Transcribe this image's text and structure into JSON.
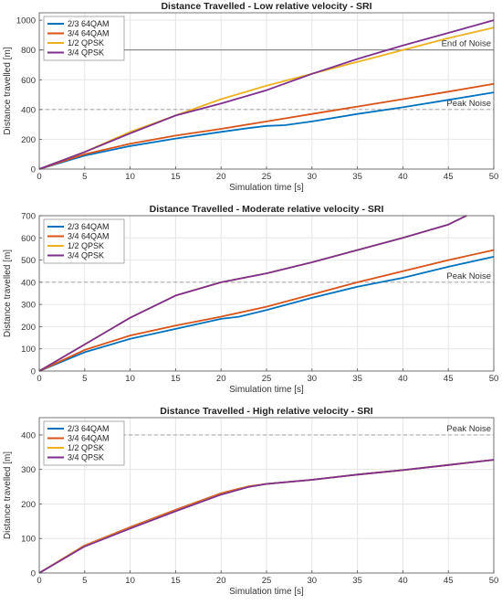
{
  "chart_data": [
    {
      "type": "line",
      "title": "Distance Travelled - Low relative velocity - SRI",
      "xlabel": "Simulation time [s]",
      "ylabel": "Distance travelled [m]",
      "xlim": [
        0,
        50
      ],
      "ylim": [
        0,
        1050
      ],
      "xticks": [
        0,
        5,
        10,
        15,
        20,
        25,
        30,
        35,
        40,
        45,
        50
      ],
      "yticks": [
        0,
        200,
        400,
        600,
        800,
        1000
      ],
      "grid": true,
      "legend": "top-left",
      "hlines": [
        {
          "y": 800,
          "label": "End of Noise",
          "style": "solid",
          "color": "#666666"
        },
        {
          "y": 400,
          "label": "Peak Noise",
          "style": "dashed",
          "color": "#999999"
        }
      ],
      "series": [
        {
          "name": "2/3 64QAM",
          "color": "#0072BD",
          "x": [
            0,
            5,
            10,
            15,
            20,
            23,
            25,
            27,
            30,
            35,
            40,
            45,
            50
          ],
          "y": [
            0,
            90,
            155,
            205,
            250,
            275,
            290,
            295,
            320,
            370,
            415,
            465,
            515
          ]
        },
        {
          "name": "3/4 64QAM",
          "color": "#D95319",
          "x": [
            0,
            5,
            10,
            15,
            20,
            25,
            30,
            35,
            40,
            45,
            50
          ],
          "y": [
            0,
            100,
            170,
            225,
            270,
            320,
            370,
            420,
            470,
            520,
            572
          ]
        },
        {
          "name": "1/2 QPSK",
          "color": "#EDB120",
          "x": [
            0,
            5,
            10,
            15,
            20,
            25,
            30,
            35,
            40,
            45,
            50
          ],
          "y": [
            0,
            115,
            250,
            360,
            470,
            560,
            640,
            720,
            800,
            880,
            950
          ]
        },
        {
          "name": "3/4 QPSK",
          "color": "#7E2F8E",
          "x": [
            0,
            5,
            10,
            15,
            20,
            25,
            30,
            35,
            40,
            45,
            50
          ],
          "y": [
            0,
            115,
            240,
            360,
            440,
            530,
            640,
            740,
            830,
            915,
            1000
          ]
        }
      ]
    },
    {
      "type": "line",
      "title": "Distance Travelled - Moderate relative velocity - SRI",
      "xlabel": "Simulation time [s]",
      "ylabel": "Distance travelled [m]",
      "xlim": [
        0,
        50
      ],
      "ylim": [
        0,
        700
      ],
      "xticks": [
        0,
        5,
        10,
        15,
        20,
        25,
        30,
        35,
        40,
        45,
        50
      ],
      "yticks": [
        0,
        100,
        200,
        300,
        400,
        500,
        600,
        700
      ],
      "grid": true,
      "legend": "top-left",
      "hlines": [
        {
          "y": 400,
          "label": "Peak Noise",
          "style": "dashed",
          "color": "#999999"
        }
      ],
      "series": [
        {
          "name": "2/3 64QAM",
          "color": "#0072BD",
          "x": [
            0,
            5,
            10,
            15,
            20,
            22,
            25,
            30,
            35,
            40,
            45,
            50
          ],
          "y": [
            0,
            85,
            145,
            190,
            235,
            245,
            275,
            330,
            380,
            420,
            470,
            515
          ]
        },
        {
          "name": "3/4 64QAM",
          "color": "#D95319",
          "x": [
            0,
            5,
            10,
            15,
            20,
            25,
            30,
            35,
            40,
            45,
            50
          ],
          "y": [
            0,
            95,
            160,
            205,
            245,
            290,
            345,
            400,
            450,
            500,
            545
          ]
        },
        {
          "name": "1/2 QPSK",
          "color": "#EDB120",
          "x": [
            0,
            5,
            10,
            15,
            20,
            25,
            30,
            35,
            40,
            45,
            47
          ],
          "y": [
            0,
            120,
            240,
            340,
            400,
            440,
            490,
            545,
            600,
            660,
            700
          ]
        },
        {
          "name": "3/4 QPSK",
          "color": "#7E2F8E",
          "x": [
            0,
            5,
            10,
            15,
            20,
            25,
            30,
            35,
            40,
            45,
            47
          ],
          "y": [
            0,
            120,
            240,
            340,
            400,
            440,
            490,
            545,
            600,
            660,
            700
          ]
        }
      ]
    },
    {
      "type": "line",
      "title": "Distance Travelled - High relative velocity - SRI",
      "xlabel": "Simulation time [s]",
      "ylabel": "Distance travelled [m]",
      "xlim": [
        0,
        50
      ],
      "ylim": [
        0,
        450
      ],
      "xticks": [
        0,
        5,
        10,
        15,
        20,
        25,
        30,
        35,
        40,
        45,
        50
      ],
      "yticks": [
        0,
        100,
        200,
        300,
        400
      ],
      "grid": true,
      "legend": "top-left",
      "hlines": [
        {
          "y": 400,
          "label": "Peak Noise",
          "style": "dashed",
          "color": "#999999"
        }
      ],
      "series": [
        {
          "name": "2/3 64QAM",
          "color": "#0072BD",
          "x": [
            0,
            5,
            10,
            15,
            20,
            23,
            25,
            30,
            35,
            40,
            45,
            50
          ],
          "y": [
            0,
            78,
            130,
            180,
            228,
            250,
            258,
            270,
            285,
            298,
            313,
            328
          ]
        },
        {
          "name": "3/4 64QAM",
          "color": "#D95319",
          "x": [
            0,
            5,
            10,
            15,
            20,
            23,
            25,
            30,
            35,
            40,
            45,
            50
          ],
          "y": [
            0,
            80,
            133,
            183,
            231,
            251,
            258,
            270,
            285,
            298,
            313,
            328
          ]
        },
        {
          "name": "1/2 QPSK",
          "color": "#EDB120",
          "x": [
            0,
            5,
            10,
            15,
            20,
            23,
            25,
            30,
            35,
            40,
            45,
            50
          ],
          "y": [
            0,
            78,
            130,
            180,
            228,
            250,
            258,
            270,
            285,
            298,
            313,
            328
          ]
        },
        {
          "name": "3/4 QPSK",
          "color": "#7E2F8E",
          "x": [
            0,
            5,
            10,
            15,
            20,
            23,
            25,
            30,
            35,
            40,
            45,
            50
          ],
          "y": [
            0,
            77,
            129,
            179,
            227,
            249,
            258,
            270,
            285,
            298,
            313,
            328
          ]
        }
      ]
    }
  ]
}
